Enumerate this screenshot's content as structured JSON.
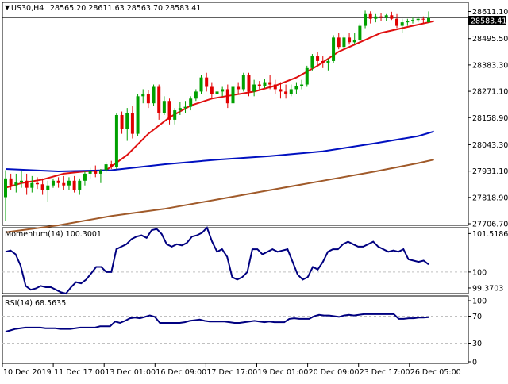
{
  "header": {
    "symbol": "US30,H4",
    "ohlc": "28565.20 28611.63 28563.70 28583.41"
  },
  "price_box": "28583.41",
  "momentum": {
    "label": "Momentum(14) 100.3001"
  },
  "rsi": {
    "label": "RSI(14) 68.5635"
  },
  "colors": {
    "up_candle": "#00a000",
    "down_candle": "#e00000",
    "ma_fast": "#e01010",
    "ma_mid": "#0010c0",
    "ma_slow": "#a05a2a",
    "oscillator": "#000080",
    "grid": "#c0c0c0"
  },
  "chart_data": [
    {
      "type": "candlestick",
      "title": "US30,H4",
      "y_ticks": [
        "28611.10",
        "28495.50",
        "28383.30",
        "28271.10",
        "28158.90",
        "28043.30",
        "27931.10",
        "27818.90",
        "27706.70"
      ],
      "ylim": [
        27700,
        28650
      ],
      "x_ticks": [
        "10 Dec 2019",
        "11 Dec 17:00",
        "13 Dec 01:00",
        "16 Dec 09:00",
        "17 Dec 17:00",
        "19 Dec 01:00",
        "20 Dec 09:00",
        "23 Dec 17:00",
        "26 Dec 05:00"
      ],
      "candles": [
        [
          27820,
          27935,
          27720,
          27900
        ],
        [
          27900,
          27920,
          27850,
          27870
        ],
        [
          27870,
          27920,
          27840,
          27885
        ],
        [
          27885,
          27930,
          27860,
          27890
        ],
        [
          27890,
          27920,
          27830,
          27860
        ],
        [
          27860,
          27910,
          27840,
          27880
        ],
        [
          27880,
          27905,
          27855,
          27875
        ],
        [
          27875,
          27900,
          27830,
          27850
        ],
        [
          27850,
          27890,
          27800,
          27870
        ],
        [
          27870,
          27900,
          27860,
          27890
        ],
        [
          27890,
          27905,
          27860,
          27880
        ],
        [
          27880,
          27910,
          27850,
          27870
        ],
        [
          27870,
          27905,
          27850,
          27890
        ],
        [
          27890,
          27910,
          27840,
          27850
        ],
        [
          27850,
          27900,
          27830,
          27890
        ],
        [
          27890,
          27930,
          27870,
          27920
        ],
        [
          27920,
          27945,
          27900,
          27930
        ],
        [
          27930,
          27955,
          27905,
          27920
        ],
        [
          27920,
          27940,
          27880,
          27935
        ],
        [
          27935,
          27970,
          27925,
          27960
        ],
        [
          27960,
          27975,
          27940,
          27950
        ],
        [
          27950,
          28180,
          27940,
          28170
        ],
        [
          28170,
          28185,
          28090,
          28110
        ],
        [
          28110,
          28200,
          28060,
          28180
        ],
        [
          28180,
          28210,
          28070,
          28090
        ],
        [
          28090,
          28260,
          28080,
          28250
        ],
        [
          28250,
          28280,
          28220,
          28260
        ],
        [
          28260,
          28275,
          28200,
          28220
        ],
        [
          28220,
          28300,
          28210,
          28290
        ],
        [
          28290,
          28300,
          28150,
          28180
        ],
        [
          28180,
          28250,
          28170,
          28230
        ],
        [
          28230,
          28240,
          28130,
          28150
        ],
        [
          28150,
          28200,
          28130,
          28190
        ],
        [
          28190,
          28225,
          28170,
          28200
        ],
        [
          28200,
          28230,
          28180,
          28205
        ],
        [
          28205,
          28250,
          28190,
          28240
        ],
        [
          28240,
          28280,
          28230,
          28270
        ],
        [
          28270,
          28340,
          28260,
          28330
        ],
        [
          28330,
          28350,
          28270,
          28290
        ],
        [
          28290,
          28310,
          28240,
          28260
        ],
        [
          28260,
          28300,
          28240,
          28270
        ],
        [
          28270,
          28290,
          28250,
          28280
        ],
        [
          28280,
          28300,
          28200,
          28220
        ],
        [
          28220,
          28300,
          28210,
          28290
        ],
        [
          28290,
          28310,
          28260,
          28280
        ],
        [
          28280,
          28350,
          28270,
          28340
        ],
        [
          28340,
          28350,
          28250,
          28270
        ],
        [
          28270,
          28320,
          28250,
          28300
        ],
        [
          28300,
          28315,
          28280,
          28295
        ],
        [
          28295,
          28325,
          28285,
          28310
        ],
        [
          28310,
          28340,
          28280,
          28300
        ],
        [
          28300,
          28320,
          28260,
          28280
        ],
        [
          28280,
          28310,
          28240,
          28270
        ],
        [
          28270,
          28300,
          28240,
          28260
        ],
        [
          28260,
          28300,
          28250,
          28280
        ],
        [
          28280,
          28310,
          28260,
          28295
        ],
        [
          28295,
          28320,
          28280,
          28300
        ],
        [
          28300,
          28380,
          28290,
          28370
        ],
        [
          28370,
          28430,
          28360,
          28420
        ],
        [
          28420,
          28440,
          28380,
          28400
        ],
        [
          28400,
          28420,
          28370,
          28390
        ],
        [
          28390,
          28410,
          28360,
          28400
        ],
        [
          28400,
          28510,
          28390,
          28500
        ],
        [
          28500,
          28520,
          28450,
          28460
        ],
        [
          28460,
          28510,
          28450,
          28500
        ],
        [
          28500,
          28520,
          28470,
          28480
        ],
        [
          28480,
          28520,
          28470,
          28490
        ],
        [
          28490,
          28560,
          28480,
          28550
        ],
        [
          28550,
          28615,
          28540,
          28600
        ],
        [
          28600,
          28612,
          28560,
          28580
        ],
        [
          28580,
          28600,
          28565,
          28590
        ],
        [
          28590,
          28605,
          28570,
          28585
        ],
        [
          28585,
          28600,
          28570,
          28595
        ],
        [
          28595,
          28610,
          28575,
          28580
        ],
        [
          28580,
          28600,
          28540,
          28550
        ],
        [
          28550,
          28580,
          28520,
          28565
        ],
        [
          28565,
          28580,
          28550,
          28570
        ],
        [
          28570,
          28585,
          28560,
          28575
        ],
        [
          28575,
          28590,
          28565,
          28580
        ],
        [
          28580,
          28590,
          28560,
          28578
        ],
        [
          28565.2,
          28611.63,
          28563.7,
          28583.41
        ]
      ],
      "moving_averages": [
        {
          "period": "fast",
          "color": "#e01010",
          "points": [
            [
              0,
              27860
            ],
            [
              3,
              27880
            ],
            [
              7,
              27895
            ],
            [
              11,
              27920
            ],
            [
              15,
              27930
            ],
            [
              19,
              27935
            ],
            [
              23,
              28000
            ],
            [
              27,
              28090
            ],
            [
              31,
              28160
            ],
            [
              35,
              28210
            ],
            [
              39,
              28240
            ],
            [
              43,
              28255
            ],
            [
              47,
              28270
            ],
            [
              51,
              28295
            ],
            [
              55,
              28330
            ],
            [
              59,
              28380
            ],
            [
              63,
              28440
            ],
            [
              67,
              28480
            ],
            [
              71,
              28520
            ],
            [
              75,
              28540
            ],
            [
              79,
              28560
            ],
            [
              81,
              28570
            ]
          ]
        },
        {
          "period": "mid",
          "color": "#0010c0",
          "points": [
            [
              0,
              27940
            ],
            [
              10,
              27930
            ],
            [
              20,
              27935
            ],
            [
              30,
              27960
            ],
            [
              40,
              27980
            ],
            [
              50,
              27995
            ],
            [
              60,
              28015
            ],
            [
              70,
              28050
            ],
            [
              78,
              28080
            ],
            [
              81,
              28100
            ]
          ]
        },
        {
          "period": "slow",
          "color": "#a05a2a",
          "points": [
            [
              0,
              27670
            ],
            [
              10,
              27700
            ],
            [
              20,
              27740
            ],
            [
              30,
              27770
            ],
            [
              40,
              27810
            ],
            [
              50,
              27850
            ],
            [
              60,
              27890
            ],
            [
              70,
              27930
            ],
            [
              78,
              27965
            ],
            [
              81,
              27980
            ]
          ]
        }
      ]
    },
    {
      "type": "line",
      "title": "Momentum(14) 100.3001",
      "y_ticks": [
        "101.5186",
        "100",
        "99.3703"
      ],
      "ylim": [
        99.15,
        101.75
      ],
      "reference_level": 100,
      "values": [
        100.8,
        100.85,
        100.7,
        100.25,
        99.45,
        99.3,
        99.35,
        99.45,
        99.4,
        99.4,
        99.3,
        99.2,
        99.15,
        99.4,
        99.6,
        99.55,
        99.7,
        99.95,
        100.2,
        100.2,
        100.0,
        100.0,
        100.9,
        101.0,
        101.1,
        101.3,
        101.4,
        101.45,
        101.35,
        101.65,
        101.7,
        101.5,
        101.1,
        101.0,
        101.1,
        101.05,
        101.15,
        101.4,
        101.45,
        101.55,
        101.75,
        101.2,
        100.8,
        100.9,
        100.6,
        99.8,
        99.7,
        99.8,
        100.0,
        100.9,
        100.9,
        100.7,
        100.8,
        100.9,
        100.8,
        100.85,
        100.9,
        100.4,
        99.9,
        99.7,
        99.8,
        100.2,
        100.1,
        100.4,
        100.8,
        100.9,
        100.9,
        101.1,
        101.2,
        101.1,
        101.0,
        101.0,
        101.1,
        101.2,
        101.0,
        100.9,
        100.8,
        100.85,
        100.8,
        100.9,
        100.5,
        100.45,
        100.4,
        100.45,
        100.3
      ]
    },
    {
      "type": "line",
      "title": "RSI(14) 68.5635",
      "y_ticks": [
        "100",
        "70",
        "30",
        "0"
      ],
      "ylim": [
        0,
        100
      ],
      "levels": [
        70,
        30
      ],
      "values": [
        47,
        49,
        51,
        52,
        53,
        53,
        53,
        53,
        52,
        52,
        52,
        51,
        51,
        51,
        52,
        53,
        53,
        53,
        53,
        55,
        55,
        55,
        62,
        60,
        63,
        67,
        68,
        67,
        69,
        71,
        69,
        60,
        60,
        60,
        60,
        60,
        61,
        63,
        64,
        65,
        63,
        62,
        62,
        62,
        62,
        61,
        60,
        60,
        61,
        62,
        63,
        62,
        61,
        62,
        61,
        61,
        61,
        66,
        67,
        66,
        66,
        66,
        70,
        72,
        71,
        71,
        70,
        69,
        71,
        72,
        71,
        72,
        73,
        73,
        73,
        73,
        73,
        73,
        73,
        66,
        66,
        67,
        67,
        68,
        68,
        68.5635
      ]
    }
  ]
}
